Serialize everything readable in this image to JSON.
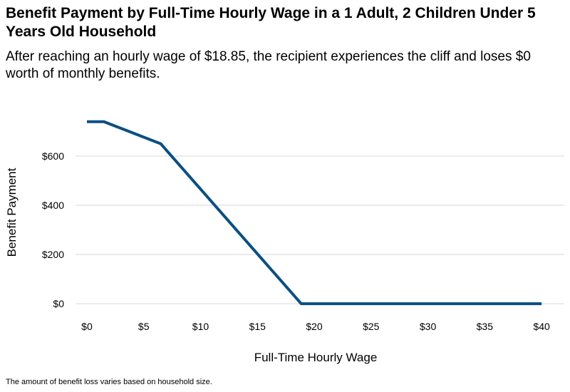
{
  "header": {
    "title": "Benefit Payment by Full-Time Hourly Wage in a 1 Adult, 2 Children Under 5 Years Old Household",
    "subtitle": "After reaching an hourly wage of $18.85, the recipient experiences the cliff and loses $0 worth of monthly benefits."
  },
  "footer": {
    "caption": "The amount of benefit loss varies based on household size."
  },
  "chart_data": {
    "type": "line",
    "title": "Benefit Payment by Full-Time Hourly Wage in a 1 Adult, 2 Children Under 5 Years Old Household",
    "subtitle": "After reaching an hourly wage of $18.85, the recipient experiences the cliff and loses $0 worth of monthly benefits.",
    "xlabel": "Full-Time Hourly Wage",
    "ylabel": "Benefit Payment",
    "xlim": [
      -1,
      42
    ],
    "ylim": [
      -20,
      800
    ],
    "x_ticks": [
      0,
      5,
      10,
      15,
      20,
      25,
      30,
      35,
      40
    ],
    "x_tick_labels": [
      "$0",
      "$5",
      "$10",
      "$15",
      "$20",
      "$25",
      "$30",
      "$35",
      "$40"
    ],
    "y_ticks": [
      0,
      200,
      400,
      600
    ],
    "y_tick_labels": [
      "$0",
      "$200",
      "$400",
      "$600"
    ],
    "grid": "horizontal",
    "legend": "none",
    "series": [
      {
        "color": "#0b4f82",
        "x": [
          0,
          1.5,
          6.5,
          18.85,
          40
        ],
        "y": [
          740,
          740,
          650,
          0,
          0
        ]
      }
    ]
  }
}
